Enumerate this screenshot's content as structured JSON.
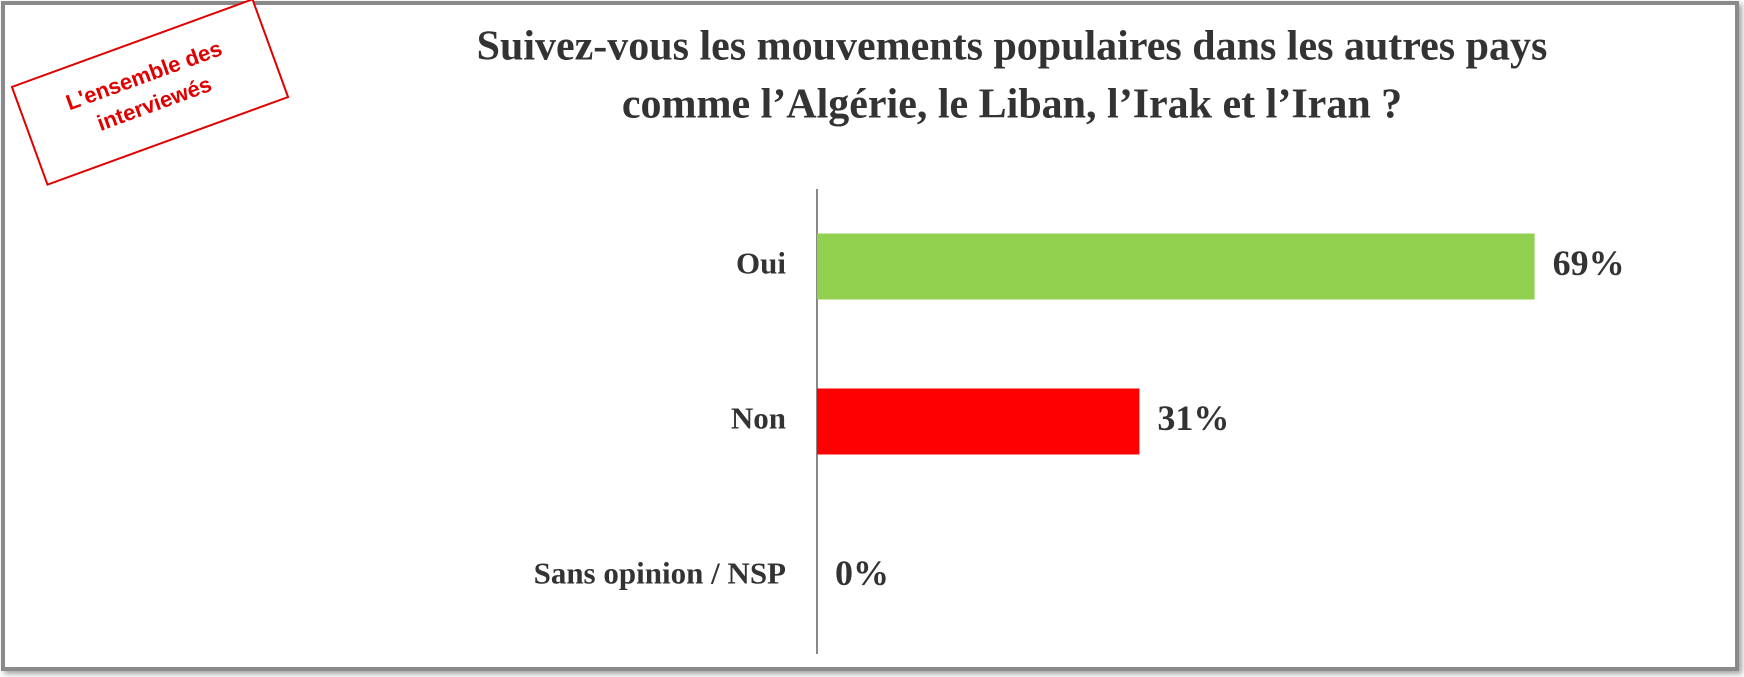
{
  "chart_data": {
    "type": "bar",
    "orientation": "horizontal",
    "title": [
      "Suivez-vous les mouvements populaires dans les autres pays",
      "comme l’Algérie, le Liban, l’Irak et l’Iran ?"
    ],
    "annotation": [
      "L'ensemble des",
      "interviewés"
    ],
    "categories": [
      "Oui",
      "Non",
      "Sans opinion / NSP"
    ],
    "values": [
      69,
      31,
      0
    ],
    "value_labels": [
      "69%",
      "31%",
      "0%"
    ],
    "colors": [
      "#92d050",
      "#ff0000",
      "#a5a5a5"
    ],
    "xlim": [
      0,
      100
    ]
  }
}
